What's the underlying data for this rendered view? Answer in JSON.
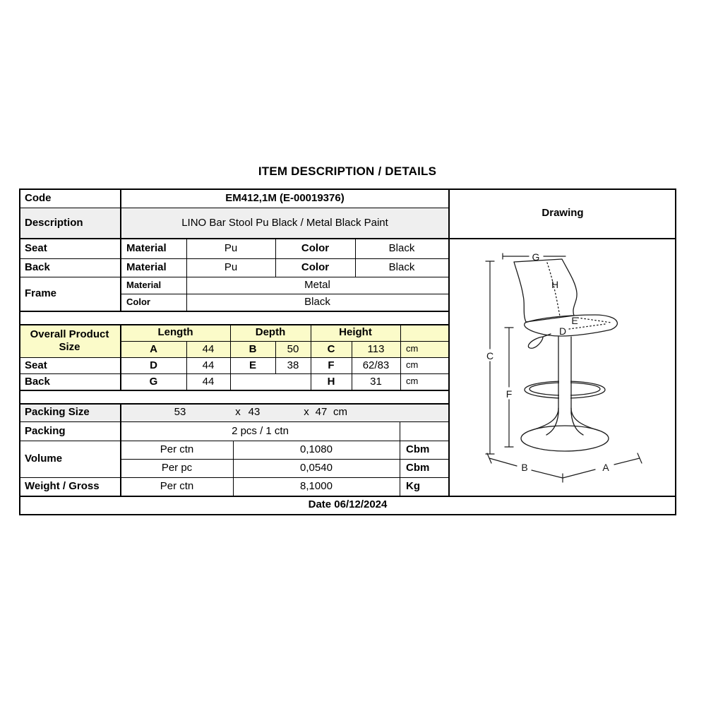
{
  "title": "ITEM DESCRIPTION / DETAILS",
  "header": {
    "code_label": "Code",
    "code_value": "EM412,1M (E-00019376)",
    "description_label": "Description",
    "description_value": "LINO Bar Stool Pu Black / Metal Black Paint",
    "drawing_label": "Drawing"
  },
  "materials": {
    "seat": {
      "label": "Seat",
      "material_label": "Material",
      "material_value": "Pu",
      "color_label": "Color",
      "color_value": "Black"
    },
    "back": {
      "label": "Back",
      "material_label": "Material",
      "material_value": "Pu",
      "color_label": "Color",
      "color_value": "Black"
    },
    "frame": {
      "label": "Frame",
      "material_label": "Material",
      "material_value": "Metal",
      "color_label": "Color",
      "color_value": "Black"
    }
  },
  "dimensions": {
    "corner_label": "Overall Product Size",
    "length_label": "Length",
    "depth_label": "Depth",
    "height_label": "Height",
    "overall": {
      "l_key": "A",
      "l_val": "44",
      "d_key": "B",
      "d_val": "50",
      "h_key": "C",
      "h_val": "113",
      "unit": "cm"
    },
    "seat": {
      "label": "Seat",
      "l_key": "D",
      "l_val": "44",
      "d_key": "E",
      "d_val": "38",
      "h_key": "F",
      "h_val": "62/83",
      "unit": "cm"
    },
    "back": {
      "label": "Back",
      "l_key": "G",
      "l_val": "44",
      "h_key": "H",
      "h_val": "31",
      "unit": "cm"
    }
  },
  "packing": {
    "size_label": "Packing Size",
    "size_v1": "53",
    "size_x1": "x",
    "size_v2": "43",
    "size_x2": "x",
    "size_v3": "47",
    "size_unit": "cm",
    "packing_label": "Packing",
    "packing_value": "2 pcs / 1 ctn",
    "volume_label": "Volume",
    "volume_per_ctn": "Per ctn",
    "volume_ctn_value": "0,1080",
    "volume_ctn_unit": "Cbm",
    "volume_per_pc": "Per pc",
    "volume_pc_value": "0,0540",
    "volume_pc_unit": "Cbm",
    "weight_label": "Weight / Gross",
    "weight_per": "Per ctn",
    "weight_value": "8,1000",
    "weight_unit": "Kg"
  },
  "footer": {
    "date": "Date 06/12/2024"
  },
  "drawing_letters": {
    "G": "G",
    "H": "H",
    "E": "E",
    "D": "D",
    "C": "C",
    "F": "F",
    "B": "B",
    "A": "A"
  },
  "colors": {
    "yellow": "#FBFBC9",
    "gray": "#EFEFEF",
    "border": "#000000",
    "line": "#1a1a1a"
  }
}
